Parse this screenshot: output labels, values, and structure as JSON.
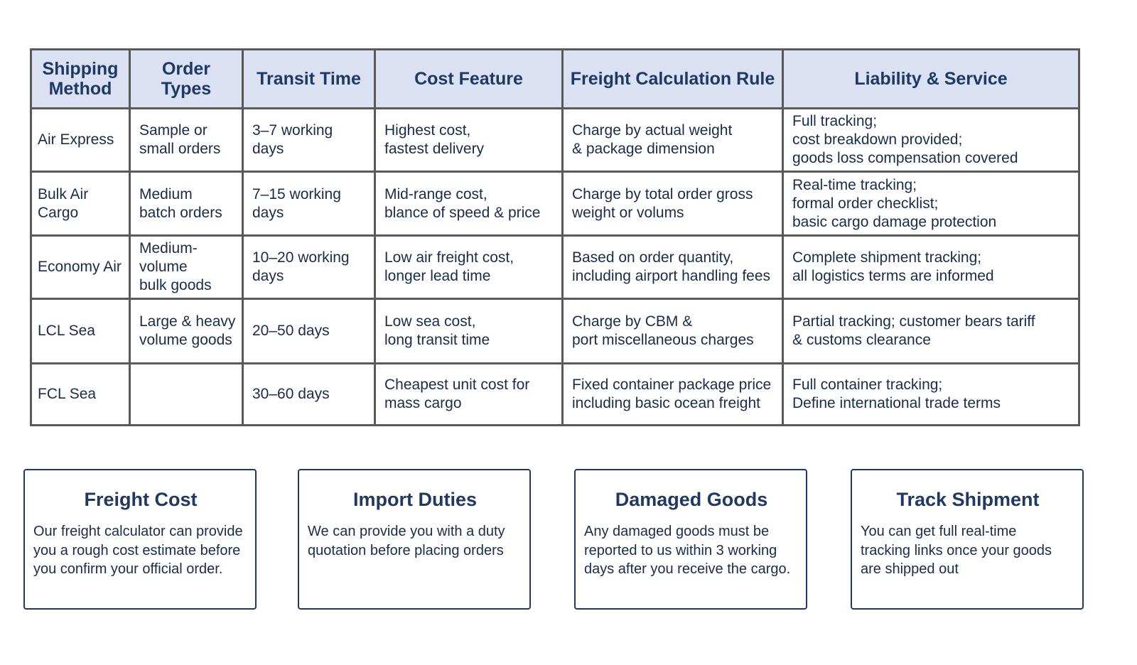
{
  "table": {
    "header": [
      "Shipping\nMethod",
      "Order Types",
      "Transit Time",
      "Cost Feature",
      "Freight Calculation Rule",
      "Liability & Service"
    ],
    "rows": [
      [
        "Air Express",
        "Sample or\nsmall orders",
        "3–7 working days",
        "Highest cost,\nfastest delivery",
        "Charge by actual weight\n& package dimension",
        "Full tracking;\ncost breakdown provided;\ngoods loss compensation covered"
      ],
      [
        "Bulk Air\nCargo",
        "Medium\nbatch orders",
        "7–15 working days",
        "Mid-range cost,\nblance of speed & price",
        "Charge by total order gross\nweight or volums",
        "Real-time tracking;\nformal order checklist;\nbasic cargo damage protection"
      ],
      [
        "Economy Air",
        "Medium-volume\nbulk goods",
        "10–20 working days",
        "Low air freight cost,\nlonger lead time",
        "Based on order quantity,\nincluding airport handling fees",
        "Complete shipment tracking;\nall logistics terms are informed"
      ],
      [
        "LCL Sea",
        "Large & heavy\nvolume goods",
        "20–50 days",
        "Low sea cost,\nlong transit time",
        "Charge by CBM &\nport miscellaneous charges",
        "Partial tracking; customer bears tariff\n& customs clearance"
      ],
      [
        "FCL Sea",
        null,
        "30–60 days",
        "Cheapest unit cost for\nmass cargo",
        "Fixed container package price\nincluding basic ocean freight",
        "Full container tracking;\nDefine international trade terms"
      ]
    ]
  },
  "cards": [
    {
      "title": "Freight Cost",
      "text": "Our freight calculator can provide\nyou a rough cost estimate before\nyou confirm your official order."
    },
    {
      "title": "Import Duties",
      "text": "We can provide you with a duty\nquotation before placing orders"
    },
    {
      "title": "Damaged Goods",
      "text": "Any damaged goods must be\nreported to us within 3 working\ndays after you receive the cargo."
    },
    {
      "title": "Track Shipment",
      "text": "You can get full real-time\ntracking links once your goods\nare shipped out"
    }
  ]
}
